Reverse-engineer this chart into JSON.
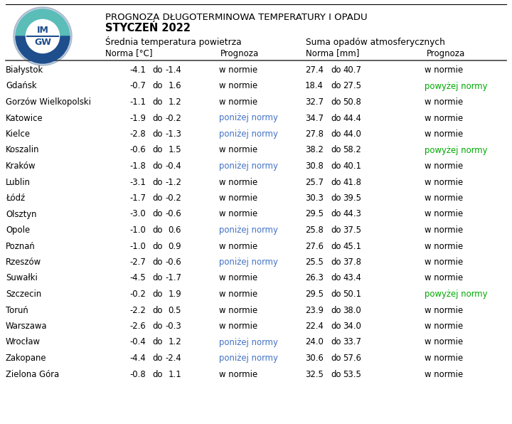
{
  "title_line1": "PROGNOZA DŁUGOTERMINOWA TEMPERATURY I OPADU",
  "title_line2": "STYCZEŃ 2022",
  "header1": "Średnia temperatura powietrza",
  "header2": "Suma opadów atmosferycznych",
  "subheader_norma_temp": "Norma [°C]",
  "subheader_prognoza": "Prognoza",
  "subheader_norma_opd": "Norma [mm]",
  "subheader_prognoza2": "Prognoza",
  "cities": [
    "Białystok",
    "Gdańsk",
    "Gorzów Wielkopolski",
    "Katowice",
    "Kielce",
    "Koszalin",
    "Kraków",
    "Lublin",
    "Łódź",
    "Olsztyn",
    "Opole",
    "Poznań",
    "Rzeszów",
    "Suwałki",
    "Szczecin",
    "Toruń",
    "Warszawa",
    "Wrocław",
    "Zakopane",
    "Zielona Góra"
  ],
  "temp_norma_low": [
    "-4.1",
    "-0.7",
    "-1.1",
    "-1.9",
    "-2.8",
    "-0.6",
    "-1.8",
    "-3.1",
    "-1.7",
    "-3.0",
    "-1.0",
    "-1.0",
    "-2.7",
    "-4.5",
    "-0.2",
    "-2.2",
    "-2.6",
    "-0.4",
    "-4.4",
    "-0.8"
  ],
  "temp_norma_high": [
    "-1.4",
    "1.6",
    "1.2",
    "-0.2",
    "-1.3",
    "1.5",
    "-0.4",
    "-1.2",
    "-0.2",
    "-0.6",
    "0.6",
    "0.9",
    "-0.6",
    "-1.7",
    "1.9",
    "0.5",
    "-0.3",
    "1.2",
    "-2.4",
    "1.1"
  ],
  "temp_prognoza": [
    "w normie",
    "w normie",
    "w normie",
    "poniżej normy",
    "poniżej normy",
    "w normie",
    "poniżej normy",
    "w normie",
    "w normie",
    "w normie",
    "poniżej normy",
    "w normie",
    "poniżej normy",
    "w normie",
    "w normie",
    "w normie",
    "w normie",
    "poniżej normy",
    "poniżej normy",
    "w normie"
  ],
  "precip_norma_low": [
    "27.4",
    "18.4",
    "32.7",
    "34.7",
    "27.8",
    "38.2",
    "30.8",
    "25.7",
    "30.3",
    "29.5",
    "25.8",
    "27.6",
    "25.5",
    "26.3",
    "29.5",
    "23.9",
    "22.4",
    "24.0",
    "30.6",
    "32.5"
  ],
  "precip_norma_high": [
    "40.7",
    "27.5",
    "50.8",
    "44.4",
    "44.0",
    "58.2",
    "40.1",
    "41.8",
    "39.5",
    "44.3",
    "37.5",
    "45.1",
    "37.8",
    "43.4",
    "50.1",
    "38.0",
    "34.0",
    "33.7",
    "57.6",
    "53.5"
  ],
  "precip_prognoza": [
    "w normie",
    "powyżej normy",
    "w normie",
    "w normie",
    "w normie",
    "powyżej normy",
    "w normie",
    "w normie",
    "w normie",
    "w normie",
    "w normie",
    "w normie",
    "w normie",
    "w normie",
    "powyżej normy",
    "w normie",
    "w normie",
    "w normie",
    "w normie",
    "w normie"
  ],
  "color_w_normie": "#000000",
  "color_ponizej": "#4472C4",
  "color_powyzej": "#00AA00",
  "bg_color": "#FFFFFF",
  "top_line_color": "#000000",
  "sep_line_color": "#444444"
}
